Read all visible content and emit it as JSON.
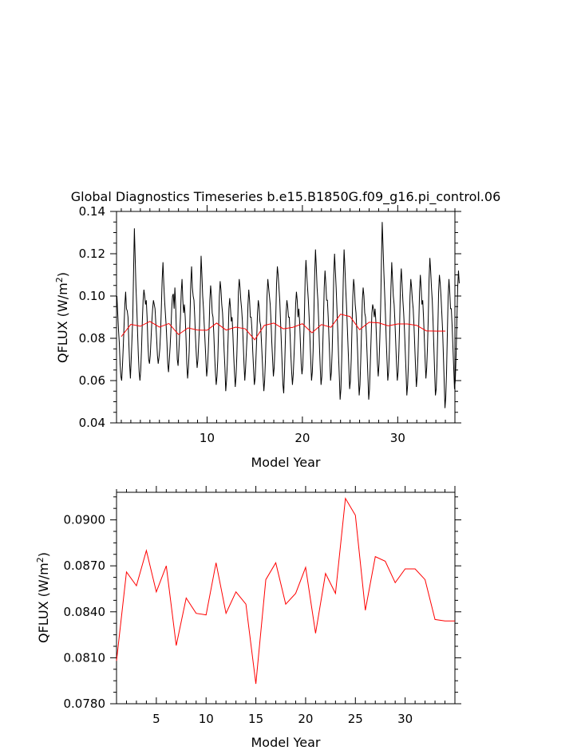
{
  "title": "Global Diagnostics Timeseries b.e15.B1850G.f09_g16.pi_control.06",
  "colors": {
    "monthly": "#000000",
    "annual": "#ff0000",
    "axes": "#000000"
  },
  "chart_data": [
    {
      "type": "line",
      "title": "Global Diagnostics Timeseries b.e15.B1850G.f09_g16.pi_control.06",
      "xlabel": "Model Year",
      "ylabel": "QFLUX (W/m²)",
      "ylabel_base": "QFLUX (W/m",
      "ylabel_sup": "2",
      "ylabel_end": ")",
      "xlim": [
        0.5,
        36
      ],
      "ylim": [
        0.04,
        0.14
      ],
      "x_ticks": [
        10,
        20,
        30
      ],
      "x_tick_labels": [
        "10",
        "20",
        "30"
      ],
      "y_ticks": [
        0.04,
        0.06,
        0.08,
        0.1,
        0.12,
        0.14
      ],
      "y_tick_labels": [
        "0.04",
        "0.06",
        "0.08",
        "0.10",
        "0.12",
        "0.14"
      ],
      "series": [
        {
          "x_start": 0.54,
          "x_step": 0.0833333,
          "values": [
            0.1,
            0.092,
            0.084,
            0.078,
            0.068,
            0.062,
            0.06,
            0.067,
            0.076,
            0.086,
            0.096,
            0.102,
            0.094,
            0.093,
            0.09,
            0.078,
            0.068,
            0.061,
            0.07,
            0.08,
            0.09,
            0.112,
            0.132,
            0.118,
            0.104,
            0.095,
            0.083,
            0.072,
            0.064,
            0.06,
            0.065,
            0.075,
            0.088,
            0.098,
            0.103,
            0.1,
            0.096,
            0.098,
            0.09,
            0.078,
            0.07,
            0.068,
            0.072,
            0.08,
            0.088,
            0.094,
            0.098,
            0.096,
            0.094,
            0.087,
            0.08,
            0.072,
            0.068,
            0.071,
            0.075,
            0.083,
            0.095,
            0.108,
            0.116,
            0.106,
            0.098,
            0.092,
            0.086,
            0.078,
            0.068,
            0.064,
            0.07,
            0.076,
            0.084,
            0.094,
            0.1,
            0.101,
            0.094,
            0.104,
            0.095,
            0.082,
            0.07,
            0.067,
            0.074,
            0.082,
            0.09,
            0.102,
            0.108,
            0.098,
            0.092,
            0.096,
            0.09,
            0.08,
            0.068,
            0.061,
            0.066,
            0.074,
            0.09,
            0.106,
            0.114,
            0.104,
            0.1,
            0.098,
            0.09,
            0.08,
            0.072,
            0.066,
            0.07,
            0.078,
            0.086,
            0.104,
            0.119,
            0.11,
            0.1,
            0.094,
            0.086,
            0.078,
            0.07,
            0.062,
            0.066,
            0.074,
            0.084,
            0.098,
            0.105,
            0.1,
            0.092,
            0.09,
            0.082,
            0.072,
            0.064,
            0.058,
            0.062,
            0.07,
            0.084,
            0.1,
            0.107,
            0.103,
            0.096,
            0.092,
            0.084,
            0.074,
            0.066,
            0.055,
            0.06,
            0.068,
            0.08,
            0.094,
            0.099,
            0.094,
            0.088,
            0.09,
            0.082,
            0.072,
            0.064,
            0.057,
            0.062,
            0.072,
            0.086,
            0.102,
            0.108,
            0.104,
            0.098,
            0.094,
            0.088,
            0.078,
            0.068,
            0.06,
            0.066,
            0.074,
            0.082,
            0.096,
            0.103,
            0.098,
            0.09,
            0.09,
            0.084,
            0.074,
            0.066,
            0.058,
            0.061,
            0.07,
            0.08,
            0.092,
            0.098,
            0.095,
            0.088,
            0.086,
            0.078,
            0.07,
            0.062,
            0.055,
            0.06,
            0.07,
            0.084,
            0.1,
            0.108,
            0.104,
            0.1,
            0.096,
            0.088,
            0.078,
            0.07,
            0.062,
            0.066,
            0.076,
            0.09,
            0.106,
            0.114,
            0.11,
            0.104,
            0.098,
            0.088,
            0.078,
            0.068,
            0.058,
            0.054,
            0.064,
            0.078,
            0.092,
            0.098,
            0.095,
            0.09,
            0.09,
            0.082,
            0.072,
            0.064,
            0.058,
            0.063,
            0.072,
            0.082,
            0.096,
            0.102,
            0.098,
            0.09,
            0.094,
            0.088,
            0.078,
            0.068,
            0.063,
            0.067,
            0.078,
            0.09,
            0.108,
            0.117,
            0.11,
            0.104,
            0.098,
            0.09,
            0.08,
            0.07,
            0.06,
            0.064,
            0.074,
            0.092,
            0.11,
            0.122,
            0.114,
            0.104,
            0.098,
            0.088,
            0.076,
            0.066,
            0.058,
            0.062,
            0.074,
            0.088,
            0.104,
            0.112,
            0.106,
            0.098,
            0.098,
            0.09,
            0.08,
            0.07,
            0.06,
            0.064,
            0.074,
            0.09,
            0.11,
            0.12,
            0.112,
            0.104,
            0.094,
            0.084,
            0.072,
            0.062,
            0.051,
            0.056,
            0.07,
            0.088,
            0.108,
            0.122,
            0.114,
            0.104,
            0.096,
            0.086,
            0.076,
            0.066,
            0.056,
            0.06,
            0.07,
            0.086,
            0.1,
            0.108,
            0.104,
            0.096,
            0.092,
            0.084,
            0.074,
            0.062,
            0.053,
            0.058,
            0.07,
            0.084,
            0.098,
            0.104,
            0.1,
            0.092,
            0.09,
            0.082,
            0.072,
            0.062,
            0.051,
            0.056,
            0.068,
            0.08,
            0.092,
            0.096,
            0.094,
            0.09,
            0.094,
            0.088,
            0.078,
            0.068,
            0.062,
            0.068,
            0.08,
            0.094,
            0.116,
            0.135,
            0.124,
            0.112,
            0.102,
            0.092,
            0.08,
            0.07,
            0.06,
            0.064,
            0.074,
            0.088,
            0.104,
            0.116,
            0.108,
            0.1,
            0.096,
            0.088,
            0.078,
            0.068,
            0.06,
            0.064,
            0.074,
            0.088,
            0.106,
            0.113,
            0.106,
            0.098,
            0.092,
            0.084,
            0.074,
            0.064,
            0.053,
            0.058,
            0.068,
            0.084,
            0.1,
            0.108,
            0.104,
            0.098,
            0.094,
            0.086,
            0.076,
            0.066,
            0.057,
            0.062,
            0.072,
            0.086,
            0.102,
            0.11,
            0.104,
            0.096,
            0.098,
            0.09,
            0.08,
            0.07,
            0.061,
            0.066,
            0.076,
            0.09,
            0.108,
            0.118,
            0.112,
            0.104,
            0.098,
            0.088,
            0.076,
            0.064,
            0.053,
            0.056,
            0.068,
            0.084,
            0.102,
            0.11,
            0.106,
            0.1,
            0.092,
            0.084,
            0.072,
            0.06,
            0.047,
            0.052,
            0.064,
            0.082,
            0.1,
            0.108,
            0.102,
            0.094,
            0.094,
            0.086,
            0.076,
            0.066,
            0.056,
            0.06,
            0.072,
            0.088,
            0.104,
            0.112,
            0.106
          ]
        },
        {
          "x": [
            1,
            2,
            3,
            4,
            5,
            6,
            7,
            8,
            9,
            10,
            11,
            12,
            13,
            14,
            15,
            16,
            17,
            18,
            19,
            20,
            21,
            22,
            23,
            24,
            25,
            26,
            27,
            28,
            29,
            30,
            31,
            32,
            33,
            34,
            35
          ],
          "values": [
            0.0808,
            0.0866,
            0.0857,
            0.088,
            0.0853,
            0.087,
            0.0818,
            0.0849,
            0.0839,
            0.0838,
            0.0872,
            0.0839,
            0.0853,
            0.0845,
            0.0793,
            0.0861,
            0.0872,
            0.0845,
            0.0852,
            0.0869,
            0.0826,
            0.0865,
            0.0852,
            0.0914,
            0.0903,
            0.0841,
            0.0876,
            0.0873,
            0.0859,
            0.0868,
            0.0868,
            0.0861,
            0.0835,
            0.0834,
            0.0834
          ]
        }
      ]
    },
    {
      "type": "line",
      "xlabel": "Model Year",
      "ylabel": "QFLUX (W/m²)",
      "ylabel_base": "QFLUX (W/m",
      "ylabel_sup": "2",
      "ylabel_end": ")",
      "xlim": [
        1,
        35
      ],
      "ylim": [
        0.078,
        0.0918
      ],
      "x_ticks": [
        5,
        10,
        15,
        20,
        25,
        30
      ],
      "x_tick_labels": [
        "5",
        "10",
        "15",
        "20",
        "25",
        "30"
      ],
      "y_ticks": [
        0.078,
        0.081,
        0.084,
        0.087,
        0.09
      ],
      "y_tick_labels": [
        "0.0780",
        "0.0810",
        "0.0840",
        "0.0870",
        "0.0900"
      ],
      "series": [
        {
          "x": [
            1,
            2,
            3,
            4,
            5,
            6,
            7,
            8,
            9,
            10,
            11,
            12,
            13,
            14,
            15,
            16,
            17,
            18,
            19,
            20,
            21,
            22,
            23,
            24,
            25,
            26,
            27,
            28,
            29,
            30,
            31,
            32,
            33,
            34,
            35
          ],
          "values": [
            0.0808,
            0.0866,
            0.0857,
            0.088,
            0.0853,
            0.087,
            0.0818,
            0.0849,
            0.0839,
            0.0838,
            0.0872,
            0.0839,
            0.0853,
            0.0845,
            0.0793,
            0.0861,
            0.0872,
            0.0845,
            0.0852,
            0.0869,
            0.0826,
            0.0865,
            0.0852,
            0.0914,
            0.0903,
            0.0841,
            0.0876,
            0.0873,
            0.0859,
            0.0868,
            0.0868,
            0.0861,
            0.0835,
            0.0834,
            0.0834
          ]
        }
      ]
    }
  ]
}
